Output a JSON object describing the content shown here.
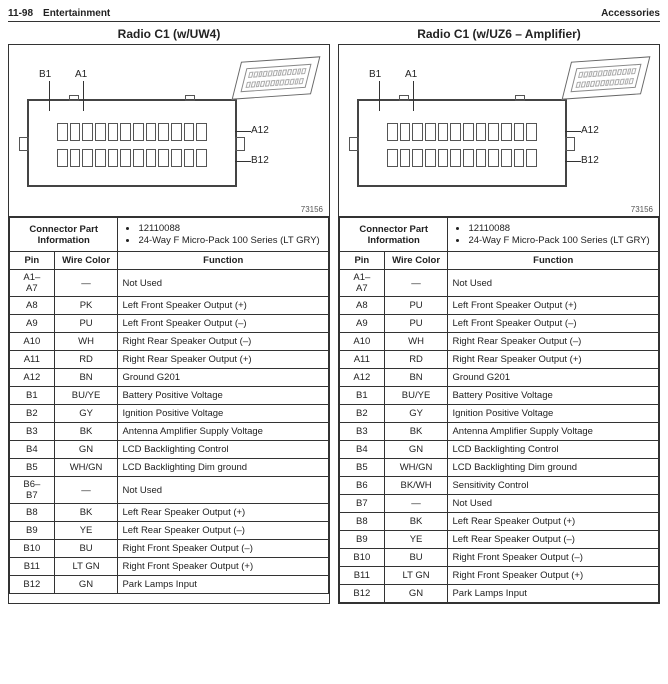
{
  "page_header": {
    "left": "11-98 Entertainment",
    "right": "Accessories"
  },
  "diagram": {
    "labels": {
      "b1": "B1",
      "a1": "A1",
      "a12": "A12",
      "b12": "B12"
    },
    "part_ref": "73156",
    "pin_count_per_row": 12,
    "iso_pin_count": 12
  },
  "connector_info": {
    "label": "Connector Part Information",
    "partnum": "12110088",
    "desc": "24-Way F Micro-Pack 100 Series (LT GRY)"
  },
  "headers": {
    "pin": "Pin",
    "wire": "Wire Color",
    "fn": "Function"
  },
  "left": {
    "title": "Radio C1 (w/UW4)",
    "rows": [
      {
        "pin": "A1–\nA7",
        "wcol": "—",
        "fn": "Not Used"
      },
      {
        "pin": "A8",
        "wcol": "PK",
        "fn": "Left Front Speaker Output (+)"
      },
      {
        "pin": "A9",
        "wcol": "PU",
        "fn": "Left Front Speaker Output (–)"
      },
      {
        "pin": "A10",
        "wcol": "WH",
        "fn": "Right Rear Speaker Output (–)"
      },
      {
        "pin": "A11",
        "wcol": "RD",
        "fn": "Right Rear Speaker Output (+)"
      },
      {
        "pin": "A12",
        "wcol": "BN",
        "fn": "Ground G201"
      },
      {
        "pin": "B1",
        "wcol": "BU/YE",
        "fn": "Battery Positive Voltage"
      },
      {
        "pin": "B2",
        "wcol": "GY",
        "fn": "Ignition Positive Voltage"
      },
      {
        "pin": "B3",
        "wcol": "BK",
        "fn": "Antenna Amplifier Supply Voltage"
      },
      {
        "pin": "B4",
        "wcol": "GN",
        "fn": "LCD Backlighting Control"
      },
      {
        "pin": "B5",
        "wcol": "WH/GN",
        "fn": "LCD Backlighting Dim ground"
      },
      {
        "pin": "B6–\nB7",
        "wcol": "—",
        "fn": "Not Used"
      },
      {
        "pin": "B8",
        "wcol": "BK",
        "fn": "Left Rear Speaker Output (+)"
      },
      {
        "pin": "B9",
        "wcol": "YE",
        "fn": "Left Rear Speaker Output (–)"
      },
      {
        "pin": "B10",
        "wcol": "BU",
        "fn": "Right Front Speaker Output (–)"
      },
      {
        "pin": "B11",
        "wcol": "LT GN",
        "fn": "Right Front Speaker Output (+)"
      },
      {
        "pin": "B12",
        "wcol": "GN",
        "fn": "Park Lamps Input"
      }
    ]
  },
  "right": {
    "title": "Radio C1 (w/UZ6 – Amplifier)",
    "rows": [
      {
        "pin": "A1–\nA7",
        "wcol": "—",
        "fn": "Not Used"
      },
      {
        "pin": "A8",
        "wcol": "PU",
        "fn": "Left Front Speaker Output (+)"
      },
      {
        "pin": "A9",
        "wcol": "PU",
        "fn": "Left Front Speaker Output (–)"
      },
      {
        "pin": "A10",
        "wcol": "WH",
        "fn": "Right Rear Speaker Output (–)"
      },
      {
        "pin": "A11",
        "wcol": "RD",
        "fn": "Right Rear Speaker Output (+)"
      },
      {
        "pin": "A12",
        "wcol": "BN",
        "fn": "Ground G201"
      },
      {
        "pin": "B1",
        "wcol": "BU/YE",
        "fn": "Battery Positive Voltage"
      },
      {
        "pin": "B2",
        "wcol": "GY",
        "fn": "Ignition Positive Voltage"
      },
      {
        "pin": "B3",
        "wcol": "BK",
        "fn": "Antenna Amplifier Supply Voltage"
      },
      {
        "pin": "B4",
        "wcol": "GN",
        "fn": "LCD Backlighting Control"
      },
      {
        "pin": "B5",
        "wcol": "WH/GN",
        "fn": "LCD Backlighting Dim ground"
      },
      {
        "pin": "B6",
        "wcol": "BK/WH",
        "fn": "Sensitivity Control"
      },
      {
        "pin": "B7",
        "wcol": "—",
        "fn": "Not Used"
      },
      {
        "pin": "B8",
        "wcol": "BK",
        "fn": "Left Rear Speaker Output (+)"
      },
      {
        "pin": "B9",
        "wcol": "YE",
        "fn": "Left Rear Speaker Output (–)"
      },
      {
        "pin": "B10",
        "wcol": "BU",
        "fn": "Right Front Speaker Output (–)"
      },
      {
        "pin": "B11",
        "wcol": "LT GN",
        "fn": "Right Front Speaker Output (+)"
      },
      {
        "pin": "B12",
        "wcol": "GN",
        "fn": "Park Lamps Input"
      }
    ]
  }
}
